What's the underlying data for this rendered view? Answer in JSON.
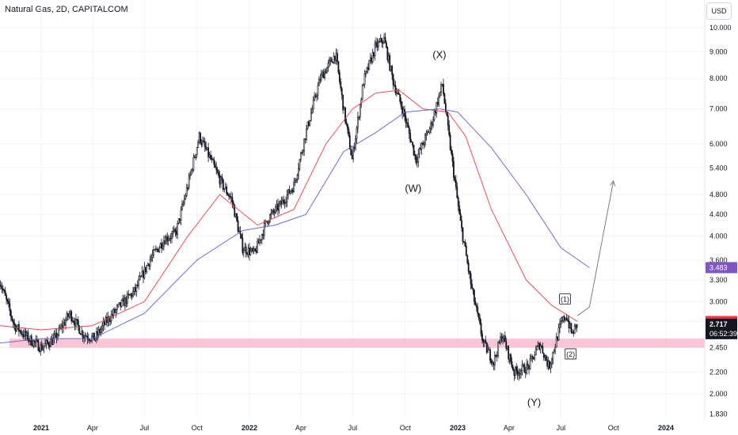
{
  "chart_title": "Natural Gas, 2D, CAPITALCOM",
  "currency_button": "USD",
  "chart_data": {
    "type": "candlestick",
    "title": "Natural Gas, 2D, CAPITALCOM",
    "y_scale": "log",
    "ylim": [
      1.83,
      10.4
    ],
    "y_ticks": [
      "10.000",
      "9.000",
      "8.000",
      "7.000",
      "6.000",
      "5.400",
      "4.800",
      "4.400",
      "4.000",
      "3.600",
      "3.300",
      "3.000",
      "2.750",
      "2.450",
      "2.200",
      "2.000",
      "1.830"
    ],
    "x_ticks": [
      {
        "label": "2021",
        "date": "2021-01-01"
      },
      {
        "label": "Apr",
        "date": "2021-04-01"
      },
      {
        "label": "Jul",
        "date": "2021-07-01"
      },
      {
        "label": "Oct",
        "date": "2021-10-01"
      },
      {
        "label": "2022",
        "date": "2022-01-01"
      },
      {
        "label": "Apr",
        "date": "2022-04-01"
      },
      {
        "label": "Jul",
        "date": "2022-07-01"
      },
      {
        "label": "Oct",
        "date": "2022-10-01"
      },
      {
        "label": "2023",
        "date": "2023-01-01"
      },
      {
        "label": "Apr",
        "date": "2023-04-01"
      },
      {
        "label": "Jul",
        "date": "2023-07-01"
      },
      {
        "label": "Oct",
        "date": "2023-10-01"
      },
      {
        "label": "2024",
        "date": "2024-01-01"
      }
    ],
    "price_path": [
      [
        "2020-10-20",
        3.3
      ],
      [
        "2020-11-15",
        2.7
      ],
      [
        "2020-12-10",
        2.55
      ],
      [
        "2021-01-01",
        2.45
      ],
      [
        "2021-01-25",
        2.55
      ],
      [
        "2021-02-20",
        2.85
      ],
      [
        "2021-03-15",
        2.6
      ],
      [
        "2021-04-05",
        2.55
      ],
      [
        "2021-04-25",
        2.75
      ],
      [
        "2021-05-20",
        2.95
      ],
      [
        "2021-06-15",
        3.15
      ],
      [
        "2021-07-10",
        3.6
      ],
      [
        "2021-08-05",
        3.95
      ],
      [
        "2021-08-25",
        4.05
      ],
      [
        "2021-09-15",
        5.0
      ],
      [
        "2021-10-05",
        6.2
      ],
      [
        "2021-10-25",
        5.6
      ],
      [
        "2021-11-15",
        5.0
      ],
      [
        "2021-12-01",
        4.7
      ],
      [
        "2021-12-20",
        3.8
      ],
      [
        "2022-01-10",
        3.7
      ],
      [
        "2022-02-01",
        4.3
      ],
      [
        "2022-02-25",
        4.6
      ],
      [
        "2022-03-20",
        5.0
      ],
      [
        "2022-04-10",
        6.3
      ],
      [
        "2022-05-05",
        8.0
      ],
      [
        "2022-06-01",
        8.9
      ],
      [
        "2022-06-15",
        7.0
      ],
      [
        "2022-06-30",
        5.6
      ],
      [
        "2022-07-20",
        7.9
      ],
      [
        "2022-08-10",
        9.2
      ],
      [
        "2022-08-25",
        9.5
      ],
      [
        "2022-09-10",
        7.9
      ],
      [
        "2022-09-28",
        6.9
      ],
      [
        "2022-10-20",
        5.6
      ],
      [
        "2022-11-15",
        6.5
      ],
      [
        "2022-12-05",
        7.8
      ],
      [
        "2022-12-20",
        5.8
      ],
      [
        "2023-01-05",
        4.3
      ],
      [
        "2023-01-25",
        3.2
      ],
      [
        "2023-02-15",
        2.5
      ],
      [
        "2023-03-05",
        2.3
      ],
      [
        "2023-03-20",
        2.6
      ],
      [
        "2023-04-10",
        2.2
      ],
      [
        "2023-05-05",
        2.25
      ],
      [
        "2023-05-25",
        2.5
      ],
      [
        "2023-06-10",
        2.25
      ],
      [
        "2023-06-30",
        2.7
      ],
      [
        "2023-07-10",
        2.83
      ],
      [
        "2023-07-20",
        2.6
      ],
      [
        "2023-07-30",
        2.717
      ]
    ],
    "series": [
      {
        "name": "",
        "color": "#f23645",
        "points": [
          [
            "2020-10-20",
            2.7
          ],
          [
            "2021-01-01",
            2.65
          ],
          [
            "2021-04-01",
            2.7
          ],
          [
            "2021-07-01",
            3.0
          ],
          [
            "2021-09-15",
            4.0
          ],
          [
            "2021-11-10",
            4.8
          ],
          [
            "2022-01-15",
            4.2
          ],
          [
            "2022-03-20",
            4.5
          ],
          [
            "2022-05-15",
            6.0
          ],
          [
            "2022-07-01",
            7.0
          ],
          [
            "2022-08-10",
            7.5
          ],
          [
            "2022-09-20",
            7.6
          ],
          [
            "2022-11-01",
            7.0
          ],
          [
            "2022-12-15",
            6.9
          ],
          [
            "2023-01-15",
            6.2
          ],
          [
            "2023-03-01",
            4.5
          ],
          [
            "2023-05-01",
            3.3
          ],
          [
            "2023-06-15",
            2.95
          ],
          [
            "2023-07-30",
            2.749
          ]
        ]
      },
      {
        "name": "",
        "color": "#5b5fc7",
        "points": [
          [
            "2020-10-20",
            2.5
          ],
          [
            "2021-01-01",
            2.55
          ],
          [
            "2021-04-01",
            2.55
          ],
          [
            "2021-07-01",
            2.85
          ],
          [
            "2021-10-01",
            3.6
          ],
          [
            "2021-12-20",
            4.1
          ],
          [
            "2022-02-15",
            4.2
          ],
          [
            "2022-04-10",
            4.4
          ],
          [
            "2022-06-15",
            5.8
          ],
          [
            "2022-08-10",
            6.3
          ],
          [
            "2022-10-01",
            6.9
          ],
          [
            "2022-12-01",
            7.0
          ],
          [
            "2023-01-01",
            6.9
          ],
          [
            "2023-03-01",
            5.9
          ],
          [
            "2023-05-01",
            4.8
          ],
          [
            "2023-07-01",
            3.8
          ],
          [
            "2023-08-20",
            3.483
          ]
        ]
      }
    ],
    "support_zone": [
      2.45,
      2.55
    ],
    "projection": [
      [
        "2023-07-30",
        2.82
      ],
      [
        "2023-08-20",
        2.93
      ],
      [
        "2023-10-01",
        5.1
      ]
    ],
    "annotations": [
      {
        "text": "(W)",
        "date": "2022-10-15",
        "price": 4.95
      },
      {
        "text": "(X)",
        "date": "2022-11-30",
        "price": 8.9
      },
      {
        "text": "(Y)",
        "date": "2023-05-15",
        "price": 1.93
      },
      {
        "text": "(1)",
        "date": "2023-07-08",
        "price": 3.03,
        "boxed": true
      },
      {
        "text": "(2)",
        "date": "2023-07-18",
        "price": 2.38,
        "boxed": true
      }
    ],
    "price_labels": [
      {
        "value": "3.483",
        "color": "#7e57c2"
      },
      {
        "value": "2.749",
        "color": "#f23645"
      },
      {
        "value": "2.717",
        "countdown": "06:52:39",
        "color": "#131722"
      }
    ]
  }
}
